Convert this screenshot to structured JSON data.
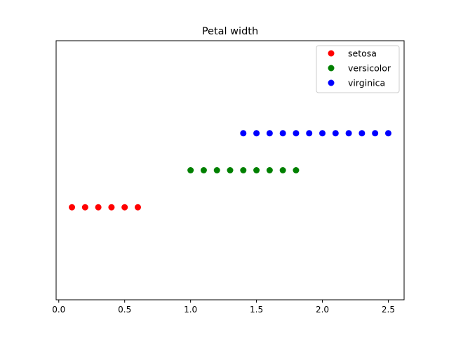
{
  "chart_data": {
    "type": "scatter",
    "title": "Petal width",
    "xlabel": "",
    "ylabel": "",
    "xlim": [
      -0.02,
      2.62
    ],
    "ylim": [
      -0.2,
      2.6
    ],
    "xticks": [
      0.0,
      0.5,
      1.0,
      1.5,
      2.0,
      2.5
    ],
    "xtick_labels": [
      "0.0",
      "0.5",
      "1.0",
      "1.5",
      "2.0",
      "2.5"
    ],
    "grid": false,
    "legend_position": "top-right",
    "series": [
      {
        "name": "setosa",
        "color": "#ff0000",
        "y": 0.8,
        "x": [
          0.1,
          0.2,
          0.3,
          0.4,
          0.5,
          0.6
        ]
      },
      {
        "name": "versicolor",
        "color": "#008000",
        "y": 1.2,
        "x": [
          1.0,
          1.1,
          1.2,
          1.3,
          1.4,
          1.5,
          1.6,
          1.7,
          1.8
        ]
      },
      {
        "name": "virginica",
        "color": "#0000ff",
        "y": 1.6,
        "x": [
          1.4,
          1.5,
          1.6,
          1.7,
          1.8,
          1.9,
          2.0,
          2.1,
          2.2,
          2.3,
          2.4,
          2.5
        ]
      }
    ]
  }
}
